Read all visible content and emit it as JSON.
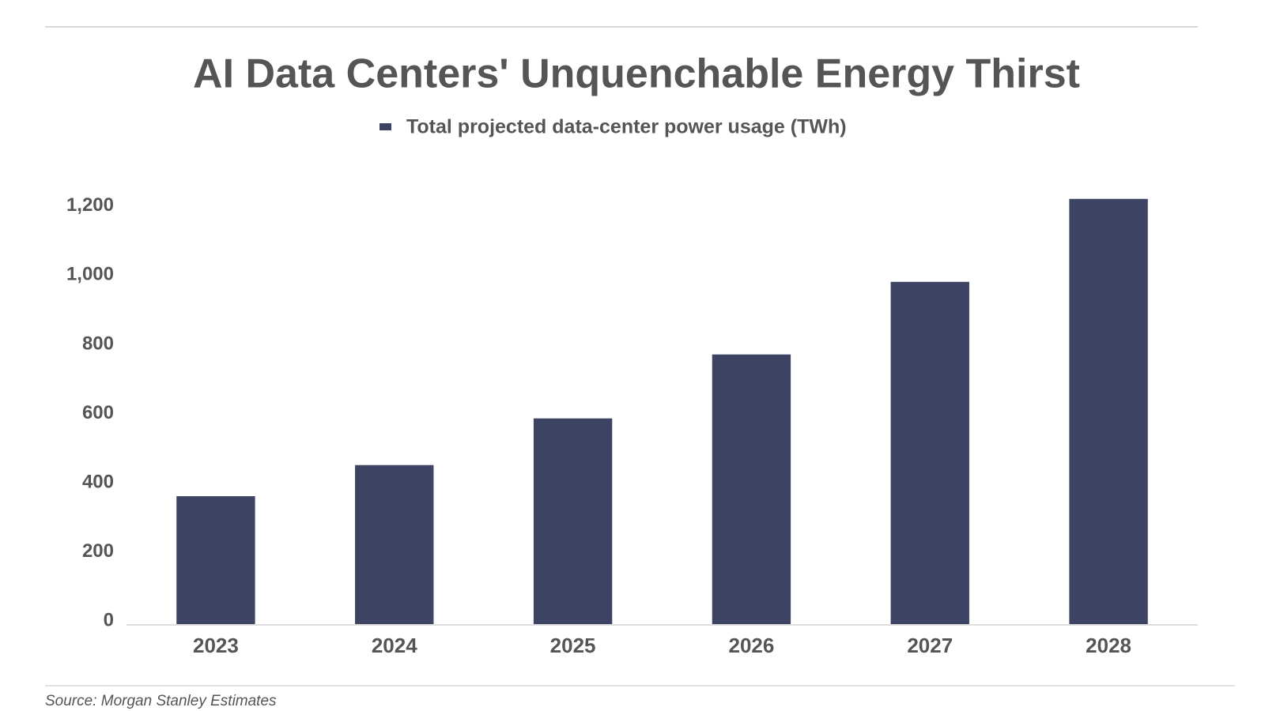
{
  "chart_data": {
    "type": "bar",
    "title": "AI Data Centers' Unquenchable Energy Thirst",
    "source": "Source: Morgan Stanley Estimates",
    "categories": [
      "2023",
      "2024",
      "2025",
      "2026",
      "2027",
      "2028"
    ],
    "series": [
      {
        "name": "Total projected data-center power usage (TWh)",
        "color": "#3d4363",
        "values": [
          370,
          460,
          595,
          780,
          990,
          1230
        ]
      }
    ],
    "ylim": [
      0,
      1250
    ],
    "yticks": [
      0,
      200,
      400,
      600,
      800,
      {
        "value": 1000,
        "label": "1,000"
      },
      {
        "value": 1200,
        "label": "1,200"
      }
    ],
    "grid": false
  }
}
